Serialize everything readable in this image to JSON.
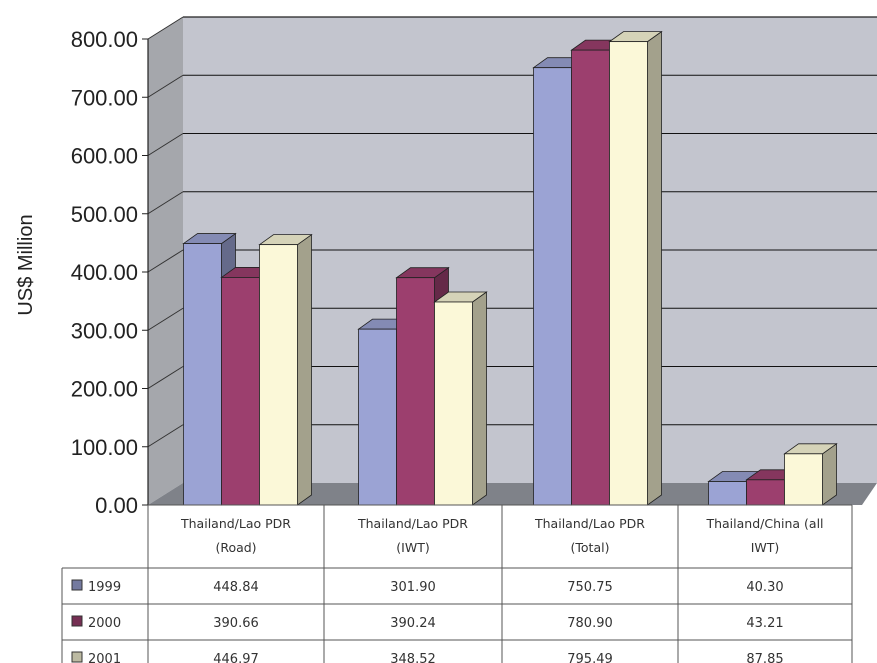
{
  "chart_data": {
    "type": "bar",
    "ylabel": "US$ Million",
    "ylim": [
      0,
      800
    ],
    "yticks": [
      "0.00",
      "100.00",
      "200.00",
      "300.00",
      "400.00",
      "500.00",
      "600.00",
      "700.00",
      "800.00"
    ],
    "grid": true,
    "legend": "table-below",
    "categories": [
      [
        "Thailand/Lao PDR",
        "(Road)"
      ],
      [
        "Thailand/Lao PDR",
        "(IWT)"
      ],
      [
        "Thailand/Lao PDR",
        "(Total)"
      ],
      [
        "Thailand/China (all",
        "IWT)"
      ]
    ],
    "series": [
      {
        "name": "1999",
        "color": "#9ba3d4",
        "values": [
          448.84,
          301.9,
          750.75,
          40.3
        ],
        "labels": [
          "448.84",
          "301.90",
          "750.75",
          "40.30"
        ]
      },
      {
        "name": "2000",
        "color": "#9c3f6e",
        "values": [
          390.66,
          390.24,
          780.9,
          43.21
        ],
        "labels": [
          "390.66",
          "390.24",
          "780.90",
          "43.21"
        ]
      },
      {
        "name": "2001",
        "color": "#fbf8d8",
        "values": [
          446.97,
          348.52,
          795.49,
          87.85
        ],
        "labels": [
          "446.97",
          "348.52",
          "795.49",
          "87.85"
        ]
      }
    ],
    "colors": {
      "wall": "#c3c5ce",
      "side_wall": "#a5a7ac",
      "floor": "#7f8289",
      "gridline": "#111111"
    }
  }
}
